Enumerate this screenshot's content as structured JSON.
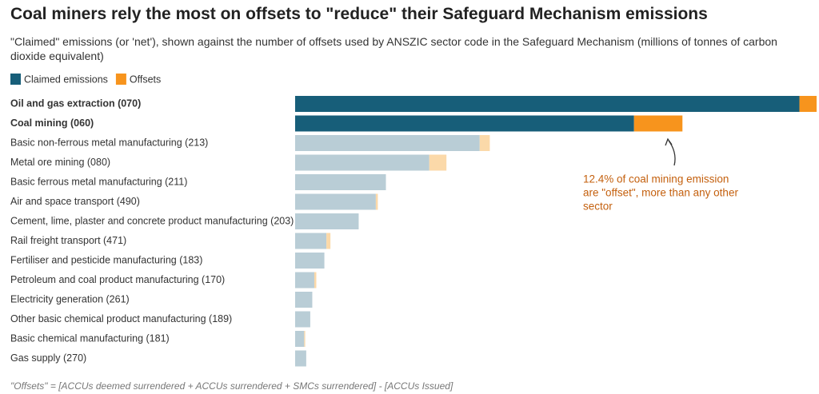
{
  "chart_data": {
    "type": "stacked-barh",
    "title": "Coal miners rely the most on offsets to \"reduce\" their Safeguard Mechanism emissions",
    "subtitle": "\"Claimed\" emissions (or 'net'), shown against the number of offsets used by ANSZIC sector code in the Safeguard Mechanism (millions of tonnes of carbon dioxide equivalent)",
    "categories": [
      "Oil and gas extraction (070)",
      "Coal mining (060)",
      "Basic non-ferrous metal manufacturing (213)",
      "Metal ore mining (080)",
      "Basic ferrous metal manufacturing (211)",
      "Air and space transport (490)",
      "Cement, lime, plaster and concrete product manufacturing (203)",
      "Rail freight transport (471)",
      "Fertiliser and pesticide manufacturing (183)",
      "Petroleum and coal product manufacturing (170)",
      "Electricity generation (261)",
      "Other basic chemical product manufacturing (189)",
      "Basic chemical manufacturing (181)",
      "Gas supply (270)"
    ],
    "highlight": [
      true,
      true,
      false,
      false,
      false,
      false,
      false,
      false,
      false,
      false,
      false,
      false,
      false,
      false
    ],
    "series": [
      {
        "name": "Claimed emissions",
        "color": "#175e79",
        "muted_color": "#b9cdd6",
        "values": [
          50.0,
          33.6,
          18.3,
          13.3,
          9.0,
          8.0,
          6.3,
          3.1,
          2.9,
          1.9,
          1.7,
          1.5,
          0.9,
          1.1
        ]
      },
      {
        "name": "Offsets",
        "color": "#f7941d",
        "muted_color": "#fbd9a9",
        "values": [
          1.7,
          4.8,
          1.0,
          1.7,
          0.0,
          0.2,
          0.0,
          0.4,
          0.0,
          0.2,
          0.0,
          0.0,
          0.1,
          0.0
        ]
      }
    ],
    "xlim": [
      0,
      51.7
    ],
    "annotation": [
      "12.4% of coal mining emission",
      "are \"offset\", more than any other",
      "sector"
    ],
    "footnote": "\"Offsets\" = [ACCUs deemed surrendered + ACCUs surrendered + SMCs surrendered] - [ACCUs Issued]"
  }
}
